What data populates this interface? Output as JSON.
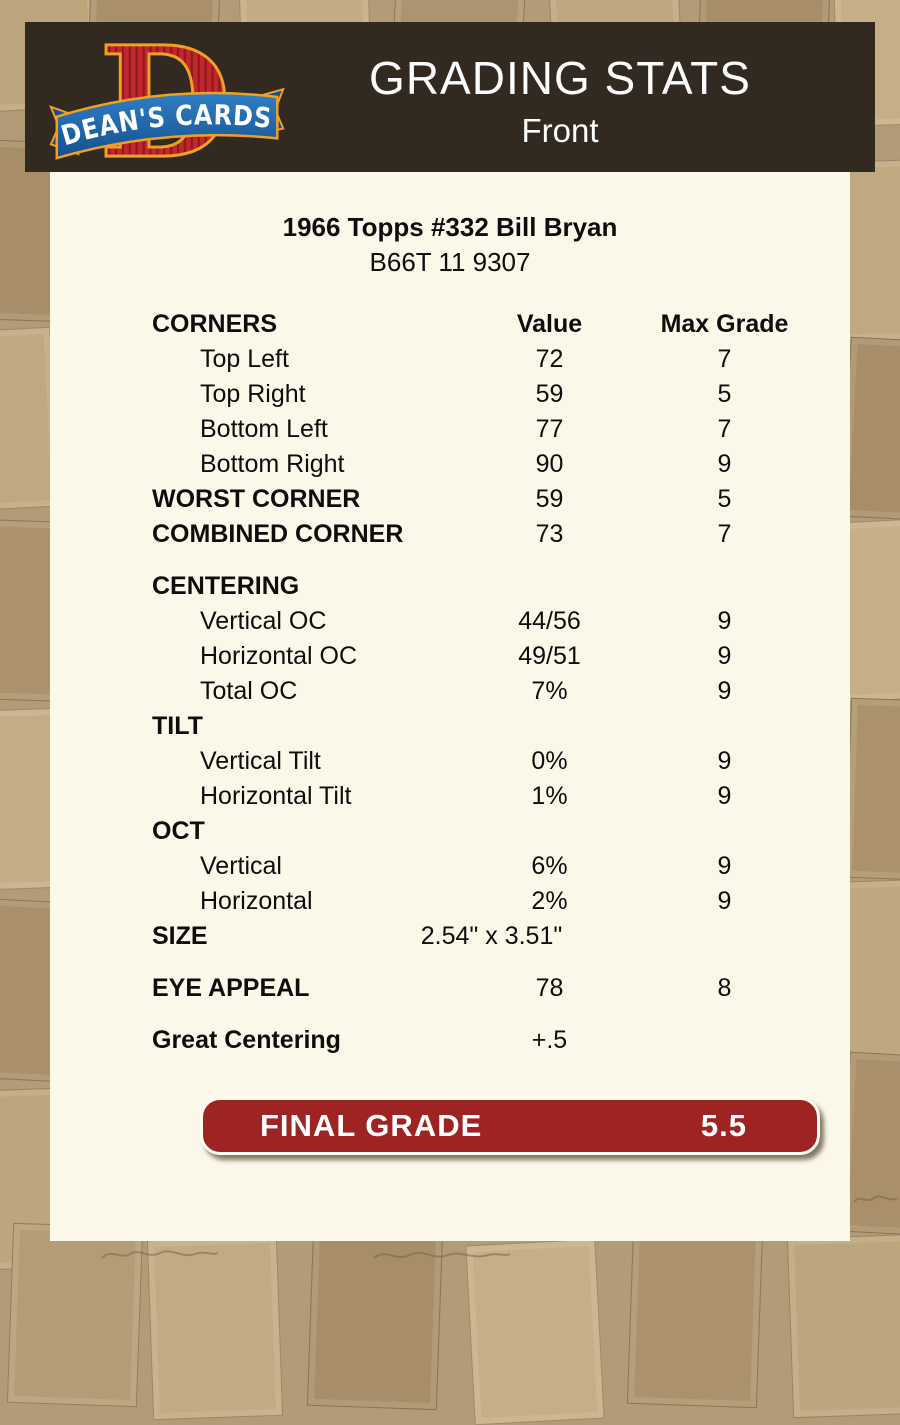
{
  "page": {
    "background_color": "#b29b77",
    "panel_color": "#fcf8e9"
  },
  "header": {
    "title": "GRADING STATS",
    "subtitle": "Front",
    "bg_color": "#322a20",
    "text_color": "#fdfdfd"
  },
  "logo": {
    "banner_text": "DEAN'S CARDS",
    "monogram": "D",
    "colors": {
      "red": "#c1272d",
      "stripe": "#8e1a1f",
      "gold": "#f2a024",
      "blue_light": "#2f7fc4",
      "blue_dark": "#14508f",
      "text": "#ffffff"
    }
  },
  "card_info": {
    "title": "1966 Topps #332 Bill Bryan",
    "serial": "B66T 11 9307"
  },
  "table": {
    "rows": [
      {
        "label": "CORNERS",
        "value": "Value",
        "max": "Max Grade",
        "header": true
      },
      {
        "label": "Top Left",
        "value": "72",
        "max": "7",
        "indent": true
      },
      {
        "label": "Top Right",
        "value": "59",
        "max": "5",
        "indent": true
      },
      {
        "label": "Bottom Left",
        "value": "77",
        "max": "7",
        "indent": true
      },
      {
        "label": "Bottom Right",
        "value": "90",
        "max": "9",
        "indent": true
      },
      {
        "label": "WORST CORNER",
        "value": "59",
        "max": "5",
        "bold": true
      },
      {
        "label": "COMBINED CORNER",
        "value": "73",
        "max": "7",
        "bold": true
      },
      {
        "label": "CENTERING",
        "bold": true,
        "gap": true
      },
      {
        "label": "Vertical OC",
        "value": "44/56",
        "max": "9",
        "indent": true
      },
      {
        "label": "Horizontal OC",
        "value": "49/51",
        "max": "9",
        "indent": true
      },
      {
        "label": "Total OC",
        "value": "7%",
        "max": "9",
        "indent": true
      },
      {
        "label": "TILT",
        "bold": true
      },
      {
        "label": "Vertical Tilt",
        "value": "0%",
        "max": "9",
        "indent": true
      },
      {
        "label": "Horizontal Tilt",
        "value": "1%",
        "max": "9",
        "indent": true
      },
      {
        "label": "OCT",
        "bold": true
      },
      {
        "label": "Vertical",
        "value": "6%",
        "max": "9",
        "indent": true
      },
      {
        "label": "Horizontal",
        "value": "2%",
        "max": "9",
        "indent": true
      },
      {
        "label": "SIZE",
        "value": "2.54\" x 3.51\"",
        "bold": true,
        "vshift": true
      },
      {
        "label": "EYE APPEAL",
        "value": "78",
        "max": "8",
        "bold": true,
        "gap": true
      },
      {
        "label": "Great Centering",
        "value": "+.5",
        "bold": true,
        "gap": true
      }
    ]
  },
  "final_grade": {
    "label": "FINAL GRADE",
    "value": "5.5",
    "bg_color": "#9e2423"
  }
}
